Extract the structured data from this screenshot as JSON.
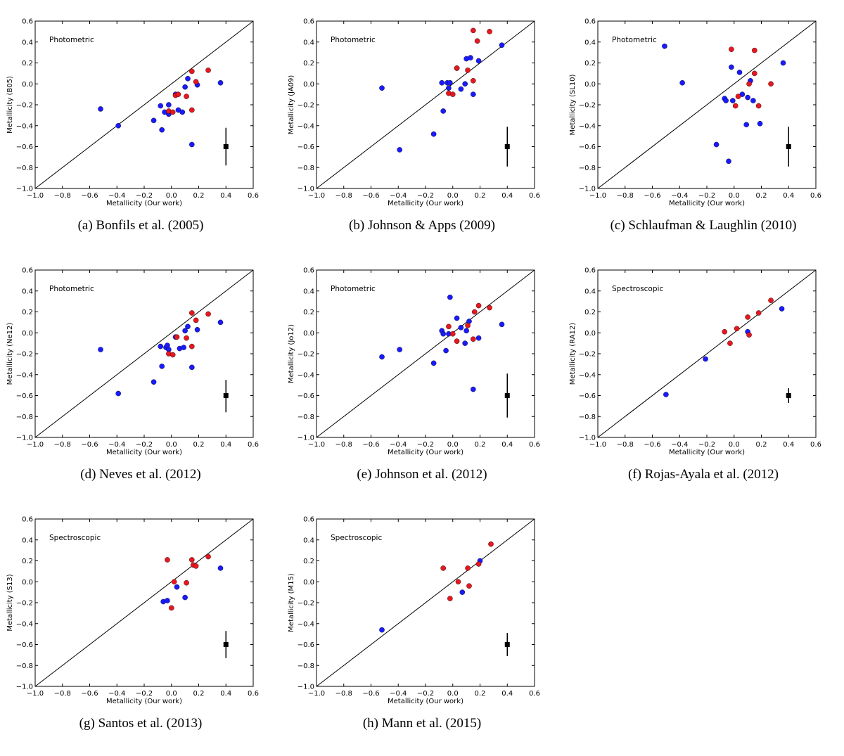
{
  "colors": {
    "blue": "#1a1aff",
    "red": "#e8171f",
    "edge": "#000000"
  },
  "chart_data": [
    {
      "type": "scatter",
      "caption": "(a) Bonfils et al. (2005)",
      "annotation": "Photometric",
      "xlabel": "Metallicity (Our work)",
      "ylabel": "Metallicity (B05)",
      "xlim": [
        -1.0,
        0.6
      ],
      "ylim": [
        -1.0,
        0.6
      ],
      "xticks": [
        "−1.0",
        "−0.8",
        "−0.6",
        "−0.4",
        "−0.2",
        "0.0",
        "0.2",
        "0.4",
        "0.6"
      ],
      "yticks": [
        "−1.0",
        "−0.8",
        "−0.6",
        "−0.4",
        "−0.2",
        "0.0",
        "0.2",
        "0.4",
        "0.6"
      ],
      "errorbar": {
        "x": 0.4,
        "y": -0.6,
        "lo": -0.78,
        "hi": -0.42
      },
      "series": [
        {
          "color": "blue",
          "points": [
            [
              -0.52,
              -0.24
            ],
            [
              -0.39,
              -0.4
            ],
            [
              -0.13,
              -0.35
            ],
            [
              -0.08,
              -0.21
            ],
            [
              -0.07,
              -0.44
            ],
            [
              -0.05,
              -0.27
            ],
            [
              -0.02,
              -0.2
            ],
            [
              -0.02,
              -0.29
            ],
            [
              0.03,
              -0.1
            ],
            [
              0.05,
              -0.25
            ],
            [
              0.08,
              -0.27
            ],
            [
              0.1,
              -0.03
            ],
            [
              0.12,
              0.05
            ],
            [
              0.15,
              -0.58
            ],
            [
              0.19,
              -0.01
            ],
            [
              0.36,
              0.01
            ]
          ]
        },
        {
          "color": "red",
          "points": [
            [
              -0.02,
              -0.26
            ],
            [
              0.01,
              -0.27
            ],
            [
              0.03,
              -0.11
            ],
            [
              0.05,
              -0.1
            ],
            [
              0.11,
              -0.12
            ],
            [
              0.15,
              -0.25
            ],
            [
              0.15,
              0.12
            ],
            [
              0.18,
              0.02
            ],
            [
              0.27,
              0.13
            ]
          ]
        }
      ]
    },
    {
      "type": "scatter",
      "caption": "(b) Johnson & Apps (2009)",
      "annotation": "Photometric",
      "xlabel": "Metallicity (Our work)",
      "ylabel": "Metallicity (JA09)",
      "xlim": [
        -1.0,
        0.6
      ],
      "ylim": [
        -1.0,
        0.6
      ],
      "xticks": [
        "−1.0",
        "−0.8",
        "−0.6",
        "−0.4",
        "−0.2",
        "0.0",
        "0.2",
        "0.4",
        "0.6"
      ],
      "yticks": [
        "−1.0",
        "−0.8",
        "−0.6",
        "−0.4",
        "−0.2",
        "0.0",
        "0.2",
        "0.4",
        "0.6"
      ],
      "errorbar": {
        "x": 0.4,
        "y": -0.6,
        "lo": -0.79,
        "hi": -0.41
      },
      "series": [
        {
          "color": "blue",
          "points": [
            [
              -0.52,
              -0.04
            ],
            [
              -0.39,
              -0.63
            ],
            [
              -0.14,
              -0.48
            ],
            [
              -0.08,
              0.01
            ],
            [
              -0.07,
              -0.26
            ],
            [
              -0.04,
              0.01
            ],
            [
              -0.03,
              -0.04
            ],
            [
              -0.02,
              0.01
            ],
            [
              0.03,
              0.15
            ],
            [
              0.06,
              -0.05
            ],
            [
              0.09,
              0.0
            ],
            [
              0.1,
              0.24
            ],
            [
              0.13,
              0.25
            ],
            [
              0.15,
              -0.1
            ],
            [
              0.19,
              0.22
            ],
            [
              0.36,
              0.37
            ]
          ]
        },
        {
          "color": "red",
          "points": [
            [
              -0.03,
              -0.09
            ],
            [
              0.0,
              -0.1
            ],
            [
              0.03,
              0.15
            ],
            [
              0.11,
              0.13
            ],
            [
              0.15,
              0.03
            ],
            [
              0.15,
              0.51
            ],
            [
              0.18,
              0.41
            ],
            [
              0.27,
              0.5
            ]
          ]
        }
      ]
    },
    {
      "type": "scatter",
      "caption": "(c) Schlaufman & Laughlin (2010)",
      "annotation": "Photometric",
      "xlabel": "Metallicity (Our work)",
      "ylabel": "Metallicity (SL10)",
      "xlim": [
        -1.0,
        0.6
      ],
      "ylim": [
        -1.0,
        0.6
      ],
      "xticks": [
        "−1.0",
        "−0.8",
        "−0.6",
        "−0.4",
        "−0.2",
        "0.0",
        "0.2",
        "0.4",
        "0.6"
      ],
      "yticks": [
        "−1.0",
        "−0.8",
        "−0.6",
        "−0.4",
        "−0.2",
        "0.0",
        "0.2",
        "0.4",
        "0.6"
      ],
      "errorbar": {
        "x": 0.4,
        "y": -0.6,
        "lo": -0.79,
        "hi": -0.41
      },
      "series": [
        {
          "color": "blue",
          "points": [
            [
              -0.51,
              0.36
            ],
            [
              -0.38,
              0.01
            ],
            [
              -0.13,
              -0.58
            ],
            [
              -0.07,
              -0.14
            ],
            [
              -0.06,
              -0.16
            ],
            [
              -0.04,
              -0.74
            ],
            [
              -0.02,
              0.16
            ],
            [
              -0.01,
              -0.16
            ],
            [
              0.04,
              0.11
            ],
            [
              0.06,
              -0.1
            ],
            [
              0.09,
              -0.39
            ],
            [
              0.1,
              -0.13
            ],
            [
              0.12,
              0.03
            ],
            [
              0.14,
              -0.16
            ],
            [
              0.19,
              -0.38
            ],
            [
              0.36,
              0.2
            ]
          ]
        },
        {
          "color": "red",
          "points": [
            [
              -0.02,
              0.33
            ],
            [
              0.01,
              -0.21
            ],
            [
              0.03,
              -0.12
            ],
            [
              0.11,
              0.0
            ],
            [
              0.15,
              0.32
            ],
            [
              0.15,
              0.1
            ],
            [
              0.18,
              -0.21
            ],
            [
              0.27,
              0.0
            ]
          ]
        }
      ]
    },
    {
      "type": "scatter",
      "caption": "(d) Neves et al. (2012)",
      "annotation": "Photometric",
      "xlabel": "Metallicity (Our work)",
      "ylabel": "Metallicity (Ne12)",
      "xlim": [
        -1.0,
        0.6
      ],
      "ylim": [
        -1.0,
        0.6
      ],
      "xticks": [
        "−1.0",
        "−0.8",
        "−0.6",
        "−0.4",
        "−0.2",
        "0.0",
        "0.2",
        "0.4",
        "0.6"
      ],
      "yticks": [
        "−1.0",
        "−0.8",
        "−0.6",
        "−0.4",
        "−0.2",
        "0.0",
        "0.2",
        "0.4",
        "0.6"
      ],
      "errorbar": {
        "x": 0.4,
        "y": -0.6,
        "lo": -0.76,
        "hi": -0.45
      },
      "series": [
        {
          "color": "blue",
          "points": [
            [
              -0.52,
              -0.16
            ],
            [
              -0.39,
              -0.58
            ],
            [
              -0.13,
              -0.47
            ],
            [
              -0.08,
              -0.13
            ],
            [
              -0.07,
              -0.32
            ],
            [
              -0.04,
              -0.14
            ],
            [
              -0.03,
              -0.12
            ],
            [
              -0.02,
              -0.16
            ],
            [
              0.03,
              -0.04
            ],
            [
              0.06,
              -0.15
            ],
            [
              0.09,
              -0.14
            ],
            [
              0.1,
              0.02
            ],
            [
              0.12,
              0.06
            ],
            [
              0.15,
              -0.33
            ],
            [
              0.19,
              0.03
            ],
            [
              0.36,
              0.1
            ]
          ]
        },
        {
          "color": "red",
          "points": [
            [
              -0.02,
              -0.2
            ],
            [
              0.01,
              -0.21
            ],
            [
              0.04,
              -0.04
            ],
            [
              0.11,
              -0.05
            ],
            [
              0.15,
              -0.13
            ],
            [
              0.15,
              0.19
            ],
            [
              0.18,
              0.12
            ],
            [
              0.27,
              0.18
            ]
          ]
        }
      ]
    },
    {
      "type": "scatter",
      "caption": "(e) Johnson et al. (2012)",
      "annotation": "Photometric",
      "xlabel": "Metallicity (Our work)",
      "ylabel": "Metallicity (Jo12)",
      "xlim": [
        -1.0,
        0.6
      ],
      "ylim": [
        -1.0,
        0.6
      ],
      "xticks": [
        "−1.0",
        "−0.8",
        "−0.6",
        "−0.4",
        "−0.2",
        "0.0",
        "0.2",
        "0.4",
        "0.6"
      ],
      "yticks": [
        "−1.0",
        "−0.8",
        "−0.6",
        "−0.4",
        "−0.2",
        "0.0",
        "0.2",
        "0.4",
        "0.6"
      ],
      "errorbar": {
        "x": 0.4,
        "y": -0.6,
        "lo": -0.81,
        "hi": -0.39
      },
      "series": [
        {
          "color": "blue",
          "points": [
            [
              -0.52,
              -0.23
            ],
            [
              -0.39,
              -0.16
            ],
            [
              -0.14,
              -0.29
            ],
            [
              -0.08,
              0.02
            ],
            [
              -0.07,
              -0.01
            ],
            [
              -0.05,
              -0.17
            ],
            [
              -0.03,
              -0.01
            ],
            [
              -0.02,
              0.34
            ],
            [
              0.03,
              0.14
            ],
            [
              0.06,
              0.05
            ],
            [
              0.09,
              -0.1
            ],
            [
              0.1,
              0.02
            ],
            [
              0.12,
              0.11
            ],
            [
              0.15,
              -0.54
            ],
            [
              0.19,
              -0.05
            ],
            [
              0.36,
              0.08
            ]
          ]
        },
        {
          "color": "red",
          "points": [
            [
              -0.03,
              0.06
            ],
            [
              0.0,
              -0.01
            ],
            [
              0.03,
              -0.08
            ],
            [
              0.11,
              0.07
            ],
            [
              0.15,
              -0.06
            ],
            [
              0.16,
              0.2
            ],
            [
              0.19,
              0.26
            ],
            [
              0.27,
              0.24
            ]
          ]
        }
      ]
    },
    {
      "type": "scatter",
      "caption": "(f) Rojas-Ayala et al. (2012)",
      "annotation": "Spectroscopic",
      "xlabel": "Metallicity (Our work)",
      "ylabel": "Metallicity (RA12)",
      "xlim": [
        -1.0,
        0.6
      ],
      "ylim": [
        -1.0,
        0.6
      ],
      "xticks": [
        "−1.0",
        "−0.8",
        "−0.6",
        "−0.4",
        "−0.2",
        "0.0",
        "0.2",
        "0.4",
        "0.6"
      ],
      "yticks": [
        "−1.0",
        "−0.8",
        "−0.6",
        "−0.4",
        "−0.2",
        "0.0",
        "0.2",
        "0.4",
        "0.6"
      ],
      "errorbar": {
        "x": 0.4,
        "y": -0.6,
        "lo": -0.67,
        "hi": -0.53
      },
      "series": [
        {
          "color": "blue",
          "points": [
            [
              -0.5,
              -0.59
            ],
            [
              -0.21,
              -0.25
            ],
            [
              0.1,
              0.01
            ],
            [
              0.35,
              0.23
            ]
          ]
        },
        {
          "color": "red",
          "points": [
            [
              -0.07,
              0.01
            ],
            [
              -0.03,
              -0.1
            ],
            [
              0.02,
              0.04
            ],
            [
              0.1,
              0.15
            ],
            [
              0.11,
              -0.02
            ],
            [
              0.18,
              0.19
            ],
            [
              0.27,
              0.31
            ]
          ]
        }
      ]
    },
    {
      "type": "scatter",
      "caption": "(g) Santos et al. (2013)",
      "annotation": "Spectroscopic",
      "xlabel": "Metallicity (Our work)",
      "ylabel": "Metallicity (S13)",
      "xlim": [
        -1.0,
        0.6
      ],
      "ylim": [
        -1.0,
        0.6
      ],
      "xticks": [
        "−1.0",
        "−0.8",
        "−0.6",
        "−0.4",
        "−0.2",
        "0.0",
        "0.2",
        "0.4",
        "0.6"
      ],
      "yticks": [
        "−1.0",
        "−0.8",
        "−0.6",
        "−0.4",
        "−0.2",
        "0.0",
        "0.2",
        "0.4",
        "0.6"
      ],
      "errorbar": {
        "x": 0.4,
        "y": -0.6,
        "lo": -0.73,
        "hi": -0.47
      },
      "series": [
        {
          "color": "blue",
          "points": [
            [
              -0.06,
              -0.19
            ],
            [
              -0.03,
              -0.18
            ],
            [
              0.04,
              -0.05
            ],
            [
              0.1,
              -0.15
            ],
            [
              0.36,
              0.13
            ]
          ]
        },
        {
          "color": "red",
          "points": [
            [
              -0.03,
              0.21
            ],
            [
              0.0,
              -0.25
            ],
            [
              0.02,
              0.0
            ],
            [
              0.11,
              -0.01
            ],
            [
              0.15,
              0.21
            ],
            [
              0.16,
              0.16
            ],
            [
              0.18,
              0.15
            ],
            [
              0.27,
              0.24
            ]
          ]
        }
      ]
    },
    {
      "type": "scatter",
      "caption": "(h) Mann et al. (2015)",
      "annotation": "Spectroscopic",
      "xlabel": "Metallicity (Our work)",
      "ylabel": "Metallicity (M15)",
      "xlim": [
        -1.0,
        0.6
      ],
      "ylim": [
        -1.0,
        0.6
      ],
      "xticks": [
        "−1.0",
        "−0.8",
        "−0.6",
        "−0.4",
        "−0.2",
        "0.0",
        "0.2",
        "0.4",
        "0.6"
      ],
      "yticks": [
        "−1.0",
        "−0.8",
        "−0.6",
        "−0.4",
        "−0.2",
        "0.0",
        "0.2",
        "0.4",
        "0.6"
      ],
      "errorbar": {
        "x": 0.4,
        "y": -0.6,
        "lo": -0.71,
        "hi": -0.49
      },
      "series": [
        {
          "color": "blue",
          "points": [
            [
              -0.52,
              -0.46
            ],
            [
              0.07,
              -0.1
            ],
            [
              0.2,
              0.2
            ]
          ]
        },
        {
          "color": "red",
          "points": [
            [
              -0.07,
              0.13
            ],
            [
              -0.02,
              -0.16
            ],
            [
              0.04,
              0.0
            ],
            [
              0.11,
              0.13
            ],
            [
              0.12,
              -0.04
            ],
            [
              0.19,
              0.17
            ],
            [
              0.28,
              0.36
            ]
          ]
        }
      ]
    }
  ]
}
